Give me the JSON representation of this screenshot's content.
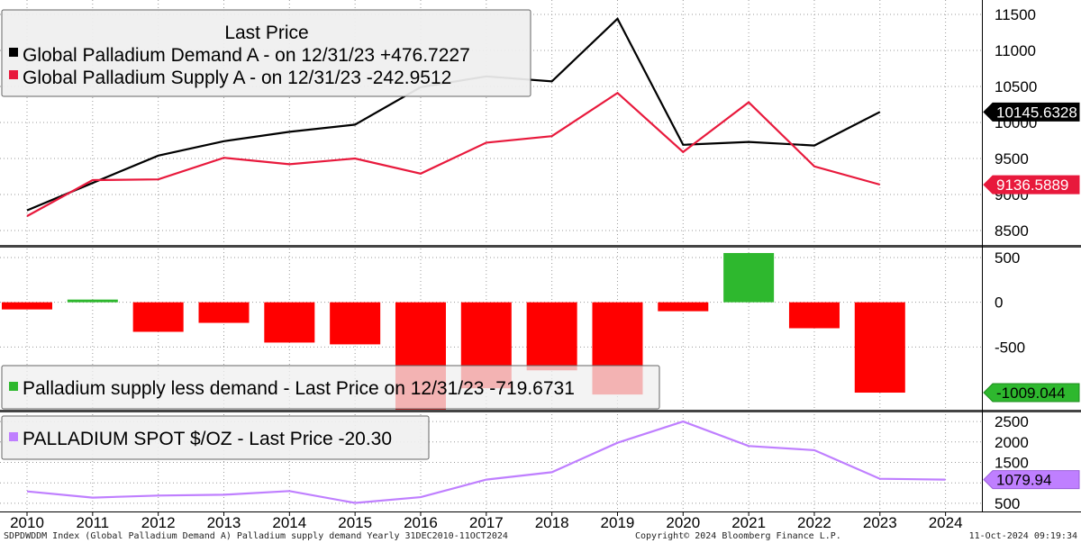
{
  "chart_data": [
    {
      "type": "line",
      "panel": "top",
      "legend_title": "Last Price",
      "legend_placement": "top-left",
      "x": [
        "2010",
        "2011",
        "2012",
        "2013",
        "2014",
        "2015",
        "2016",
        "2017",
        "2018",
        "2019",
        "2020",
        "2021",
        "2022",
        "2023"
      ],
      "ylim": [
        8300,
        11700
      ],
      "yticks": [
        8500,
        9000,
        9500,
        10000,
        10500,
        11000,
        11500
      ],
      "grid": true,
      "series": [
        {
          "name": "Global Palladium Demand A -  on 12/31/23 +476.7227",
          "color": "#000000",
          "values": [
            8780,
            9160,
            9540,
            9740,
            9870,
            9970,
            10490,
            10640,
            10570,
            11440,
            9690,
            9730,
            9680,
            10146
          ],
          "last_label": "10145.6328",
          "last_value": 10145.6328
        },
        {
          "name": "Global Palladium Supply A -  on 12/31/23  -242.9512",
          "color": "#e8193c",
          "values": [
            8700,
            9200,
            9210,
            9510,
            9420,
            9500,
            9290,
            9720,
            9810,
            10410,
            9590,
            10280,
            9390,
            9137
          ],
          "last_label": "9136.5889",
          "last_value": 9136.5889
        }
      ]
    },
    {
      "type": "bar",
      "panel": "middle",
      "legend_placement": "bottom-left",
      "categories": [
        "2010",
        "2011",
        "2012",
        "2013",
        "2014",
        "2015",
        "2016",
        "2017",
        "2018",
        "2019",
        "2020",
        "2021",
        "2022",
        "2023"
      ],
      "ylim": [
        -1200,
        600
      ],
      "yticks": [
        500,
        0,
        -500
      ],
      "grid": true,
      "series": [
        {
          "name": "Palladium supply less demand - Last Price on 12/31/23  -719.6731",
          "pos_color": "#2eb82e",
          "neg_color": "#ff0000",
          "values": [
            -80,
            30,
            -330,
            -230,
            -450,
            -470,
            -1200,
            -960,
            -760,
            -1030,
            -100,
            550,
            -290,
            -1009.044
          ],
          "last_label": "-1009.044",
          "last_value": -1009.044
        }
      ]
    },
    {
      "type": "line",
      "panel": "bottom",
      "legend_placement": "top-left",
      "x": [
        "2010",
        "2011",
        "2012",
        "2013",
        "2014",
        "2015",
        "2016",
        "2017",
        "2018",
        "2019",
        "2020",
        "2021",
        "2022",
        "2023",
        "2024"
      ],
      "ylim": [
        300,
        2700
      ],
      "yticks": [
        500,
        1000,
        1500,
        2000,
        2500
      ],
      "grid": true,
      "series": [
        {
          "name": "PALLADIUM SPOT $/OZ - Last Price  -20.30",
          "color": "#bf7fff",
          "values": [
            790,
            640,
            690,
            710,
            800,
            510,
            650,
            1080,
            1260,
            1980,
            2500,
            1900,
            1800,
            1100,
            1080
          ],
          "last_label": "1079.94",
          "last_value": 1079.94
        }
      ]
    }
  ],
  "x_axis_labels": [
    "2010",
    "2011",
    "2012",
    "2013",
    "2014",
    "2015",
    "2016",
    "2017",
    "2018",
    "2019",
    "2020",
    "2021",
    "2022",
    "2023",
    "2024"
  ],
  "footer": {
    "left": "SDPDWDDM Index (Global Palladium Demand A) Palladium supply demand  Yearly 31DEC2010-11OCT2024",
    "center": "Copyright© 2024 Bloomberg Finance L.P.",
    "right": "11-Oct-2024 09:19:34"
  }
}
